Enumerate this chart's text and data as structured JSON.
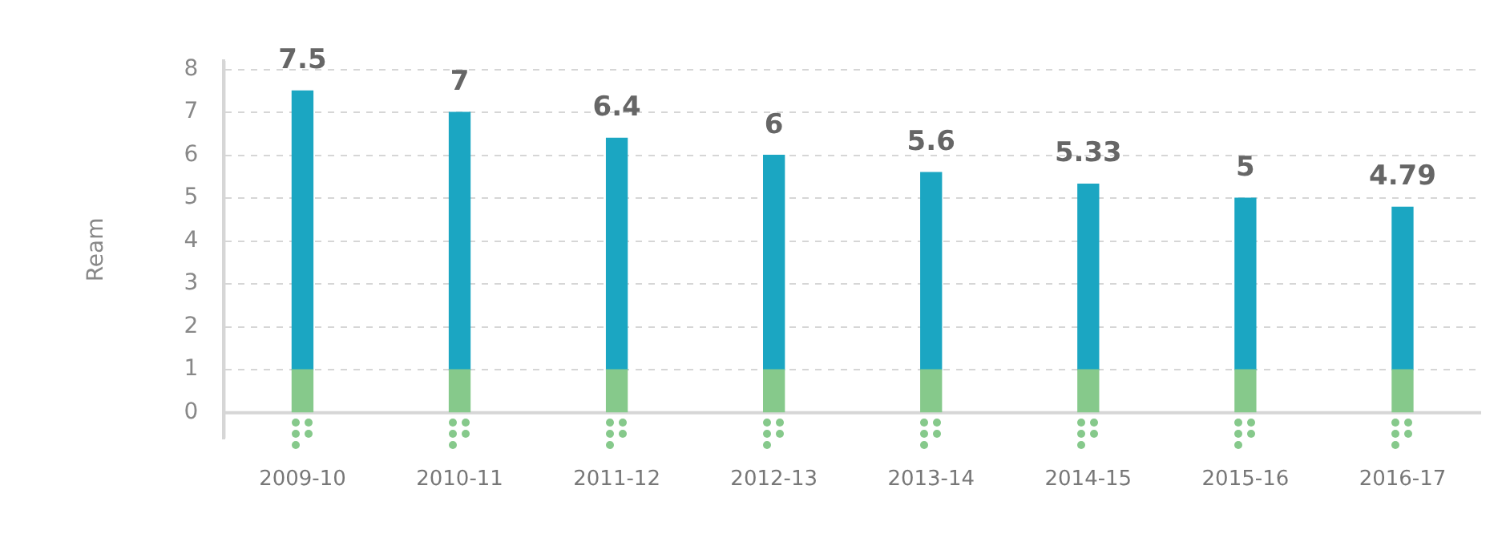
{
  "chart_data": {
    "type": "bar",
    "ylabel": "Ream",
    "categories": [
      "2009-10",
      "2010-11",
      "2011-12",
      "2012-13",
      "2013-14",
      "2014-15",
      "2015-16",
      "2016-17"
    ],
    "series": [
      {
        "color": "#86c98b",
        "values": [
          1,
          1,
          1,
          1,
          1,
          1,
          1,
          1
        ]
      },
      {
        "color": "#1ba6c2",
        "values": [
          6.5,
          6,
          5.4,
          5,
          4.6,
          4.33,
          4,
          3.79
        ]
      }
    ],
    "stacked": true,
    "totals": [
      "7.5",
      "7",
      "6.4",
      "6",
      "5.6",
      "5.33",
      "5",
      "4.79"
    ],
    "ylim": [
      -0.6,
      8.2
    ],
    "yticks": [
      0,
      1,
      2,
      3,
      4,
      5,
      6,
      7,
      8
    ],
    "grid": "y",
    "legend": false
  }
}
